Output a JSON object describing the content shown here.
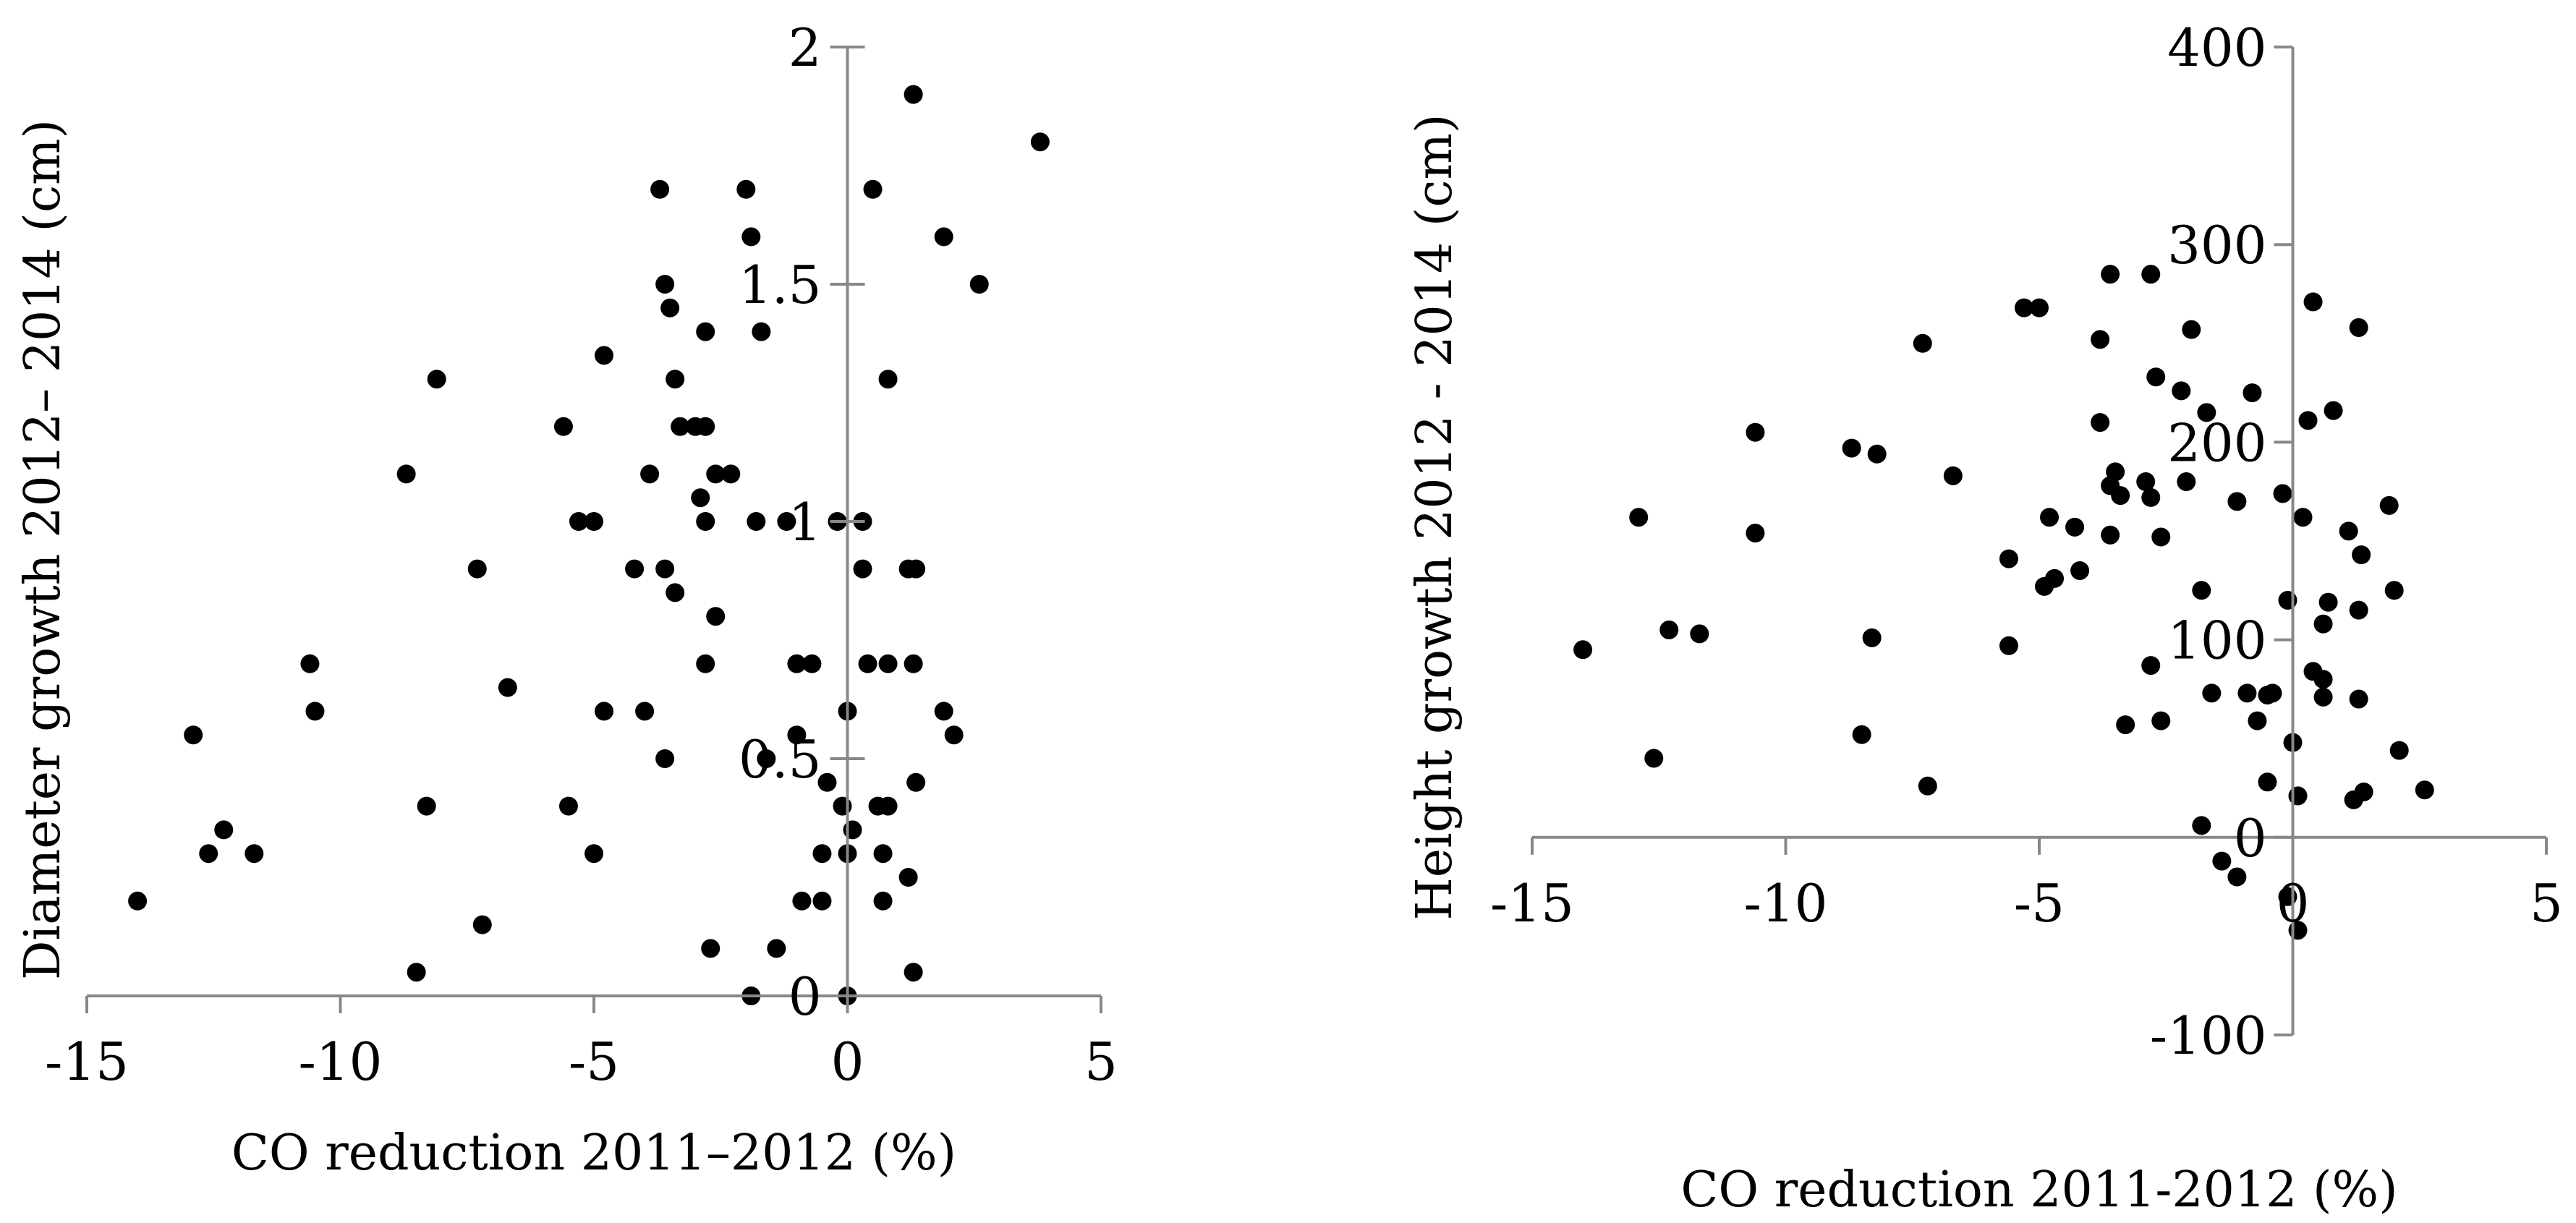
{
  "colors": {
    "marker": "#000000",
    "axis": "#888888",
    "background": "#ffffff"
  },
  "chart_data": [
    {
      "type": "scatter",
      "title": "",
      "xlabel": "CO reduction  2011–2012 (%)",
      "ylabel": "Diameter growth  2012– 2014 (cm)",
      "xlim": [
        -15,
        5
      ],
      "ylim": [
        0,
        2
      ],
      "x_ticks": [
        -15,
        -10,
        -5,
        0,
        5
      ],
      "y_ticks": [
        0,
        0.5,
        1,
        1.5,
        2
      ],
      "x_tick_labels": [
        "-15",
        "-10",
        "-5",
        "0",
        "5"
      ],
      "y_tick_labels": [
        "0",
        "0.5",
        "1",
        "1.5",
        "2"
      ],
      "grid": false,
      "x": [
        1.3,
        3.8,
        0.5,
        1.9,
        -3.7,
        -2.0,
        -1.9,
        -3.6,
        -3.5,
        -2.8,
        -1.7,
        2.6,
        -4.8,
        -8.1,
        -3.4,
        0.8,
        -5.6,
        -3.3,
        -3.0,
        -2.8,
        -8.7,
        -3.9,
        -2.6,
        -2.3,
        -2.9,
        -5.3,
        -5.0,
        -2.8,
        -1.8,
        -1.2,
        -0.2,
        0.3,
        -7.3,
        -4.2,
        -3.6,
        0.3,
        1.2,
        1.35,
        -3.4,
        -2.6,
        -10.6,
        -6.7,
        -2.8,
        -1.0,
        -0.7,
        0.4,
        0.8,
        1.3,
        -10.5,
        -4.8,
        -4.0,
        0.0,
        1.9,
        -12.9,
        -1.0,
        2.1,
        -3.6,
        -1.6,
        -0.4,
        1.35,
        -8.3,
        -5.5,
        -0.1,
        0.6,
        0.8,
        -12.3,
        0.1,
        -12.6,
        -11.7,
        -5.0,
        -0.5,
        0.0,
        0.7,
        1.2,
        -14.0,
        -0.9,
        -0.5,
        0.7,
        -7.2,
        -2.7,
        -1.4,
        -8.5,
        1.3,
        -1.9,
        0.0
      ],
      "y": [
        1.9,
        1.8,
        1.7,
        1.6,
        1.7,
        1.7,
        1.6,
        1.5,
        1.45,
        1.4,
        1.4,
        1.5,
        1.35,
        1.3,
        1.3,
        1.3,
        1.2,
        1.2,
        1.2,
        1.2,
        1.1,
        1.1,
        1.1,
        1.1,
        1.05,
        1.0,
        1.0,
        1.0,
        1.0,
        1.0,
        1.0,
        1.0,
        0.9,
        0.9,
        0.9,
        0.9,
        0.9,
        0.9,
        0.85,
        0.8,
        0.7,
        0.65,
        0.7,
        0.7,
        0.7,
        0.7,
        0.7,
        0.7,
        0.6,
        0.6,
        0.6,
        0.6,
        0.6,
        0.55,
        0.55,
        0.55,
        0.5,
        0.5,
        0.45,
        0.45,
        0.4,
        0.4,
        0.4,
        0.4,
        0.4,
        0.35,
        0.35,
        0.3,
        0.3,
        0.3,
        0.3,
        0.3,
        0.3,
        0.25,
        0.2,
        0.2,
        0.2,
        0.2,
        0.15,
        0.1,
        0.1,
        0.05,
        0.05,
        0.0,
        0.0
      ]
    },
    {
      "type": "scatter",
      "title": "",
      "xlabel": "CO reduction 2011-2012 (%)",
      "ylabel": "Height growth  2012 - 2014 (cm)",
      "xlim": [
        -15,
        5
      ],
      "ylim": [
        -100,
        400
      ],
      "x_ticks": [
        -15,
        -10,
        -5,
        0,
        5
      ],
      "y_ticks": [
        -100,
        0,
        100,
        200,
        300,
        400
      ],
      "x_tick_labels": [
        "-15",
        "-10",
        "-5",
        "0",
        "5"
      ],
      "y_tick_labels": [
        "-100",
        "0",
        "100",
        "200",
        "300",
        "400"
      ],
      "grid": false,
      "x": [
        -3.6,
        -2.8,
        -5.3,
        -5.0,
        0.4,
        -7.3,
        1.3,
        -3.8,
        -2.0,
        -2.7,
        -2.2,
        -0.8,
        -1.7,
        0.8,
        0.3,
        -10.6,
        -3.8,
        -8.7,
        -8.2,
        -6.7,
        -3.5,
        -2.9,
        -2.1,
        -3.6,
        -3.4,
        -2.8,
        -0.2,
        -1.1,
        -4.8,
        1.9,
        -12.9,
        -10.6,
        -4.3,
        0.2,
        1.1,
        -3.6,
        -2.6,
        -5.6,
        -4.7,
        -4.2,
        1.35,
        -4.9,
        -1.8,
        -0.1,
        0.7,
        2.0,
        1.3,
        -12.3,
        -11.7,
        -8.3,
        0.6,
        -14.0,
        -5.6,
        -2.8,
        0.4,
        0.6,
        -1.6,
        -0.9,
        -0.5,
        -0.4,
        0.6,
        -3.3,
        -2.6,
        -0.7,
        1.3,
        -8.5,
        -12.6,
        2.1,
        -7.2,
        -0.5,
        0.0,
        2.6,
        1.4,
        0.1,
        1.2,
        -1.8,
        -1.4,
        -1.1,
        -0.1,
        0.1
      ],
      "y": [
        285,
        285,
        268,
        268,
        271,
        250,
        258,
        252,
        257,
        233,
        226,
        225,
        215,
        216,
        211,
        205,
        210,
        197,
        194,
        183,
        185,
        180,
        180,
        178,
        173,
        172,
        174,
        170,
        162,
        168,
        162,
        154,
        157,
        162,
        155,
        153,
        152,
        141,
        131,
        135,
        143,
        127,
        125,
        120,
        119,
        125,
        115,
        105,
        103,
        101,
        108,
        95,
        97,
        87,
        84,
        80,
        73,
        73,
        72,
        73,
        71,
        57,
        59,
        59,
        70,
        52,
        40,
        44,
        26,
        28,
        48,
        24,
        23,
        21,
        19,
        6,
        -12,
        -20,
        -30,
        -47
      ]
    }
  ]
}
